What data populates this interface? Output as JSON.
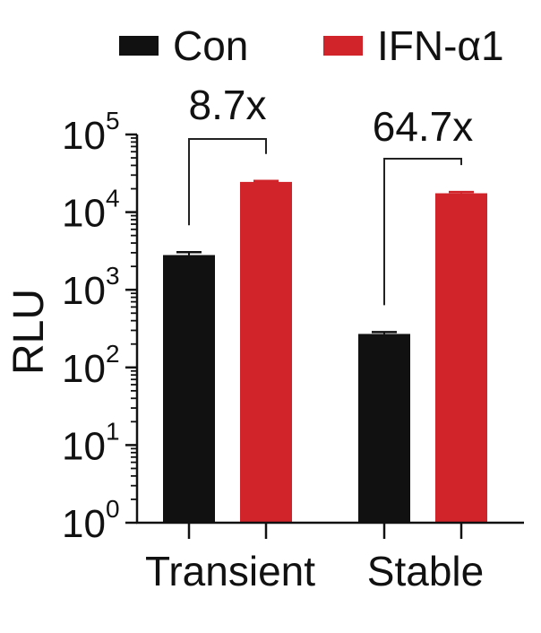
{
  "chart_data": {
    "type": "bar",
    "ylabel": "RLU",
    "yscale": "log",
    "ylim": [
      1,
      100000
    ],
    "yticks": [
      {
        "value": 1,
        "base": "10",
        "exp": "0"
      },
      {
        "value": 10,
        "base": "10",
        "exp": "1"
      },
      {
        "value": 100,
        "base": "10",
        "exp": "2"
      },
      {
        "value": 1000,
        "base": "10",
        "exp": "3"
      },
      {
        "value": 10000,
        "base": "10",
        "exp": "4"
      },
      {
        "value": 100000,
        "base": "10",
        "exp": "5"
      }
    ],
    "categories": [
      "Transient",
      "Stable"
    ],
    "series": [
      {
        "name": "Con",
        "color": "#111111",
        "values": [
          2800,
          270
        ],
        "errors": [
          250,
          15
        ]
      },
      {
        "name": "IFN-α1",
        "color": "#d0232a",
        "values": [
          24500,
          17500
        ],
        "errors": [
          800,
          700
        ]
      }
    ],
    "annotations": [
      {
        "category": "Transient",
        "text": "8.7x"
      },
      {
        "category": "Stable",
        "text": "64.7x"
      }
    ],
    "legend_position": "top",
    "grid": false
  }
}
